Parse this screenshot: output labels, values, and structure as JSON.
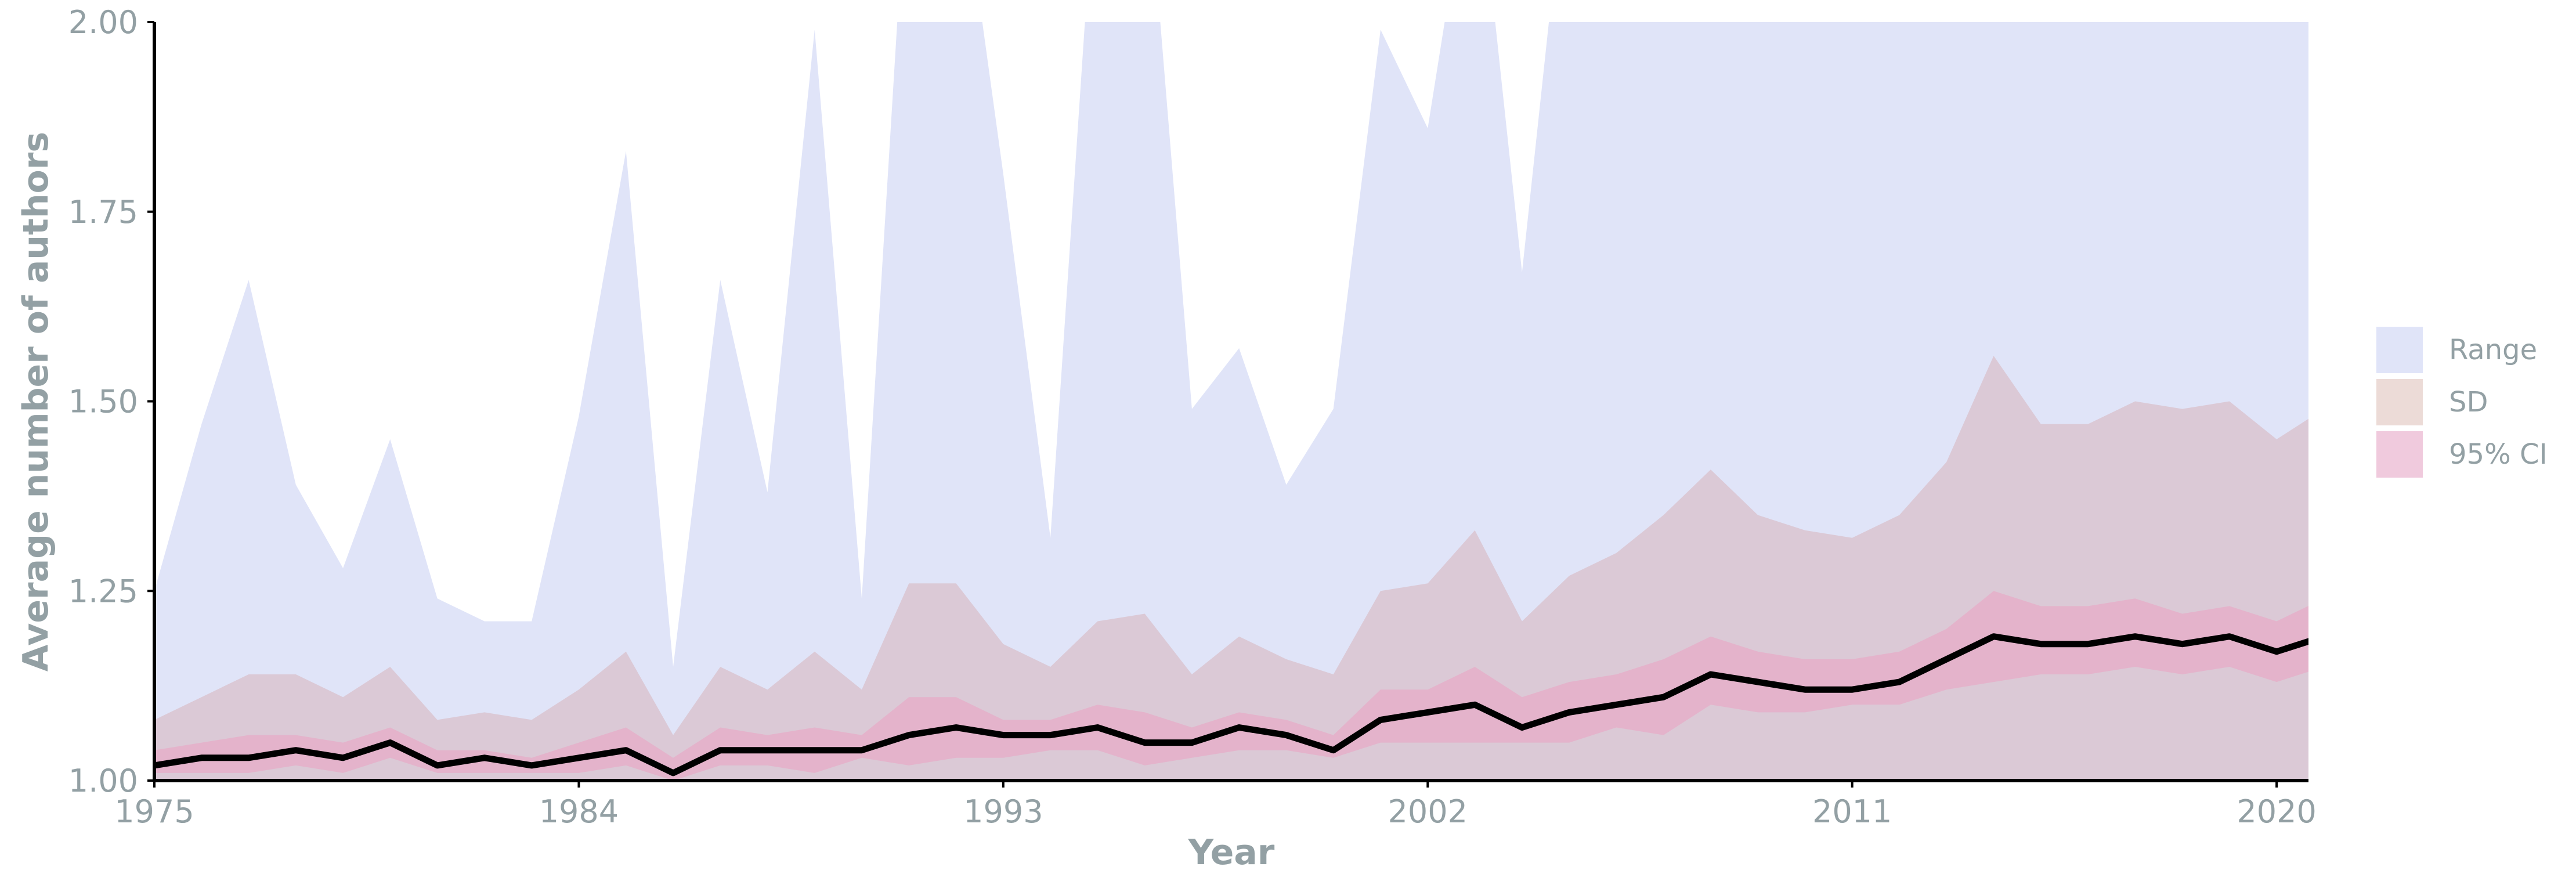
{
  "chart_data": {
    "type": "area",
    "xlabel": "Year",
    "ylabel": "Average number of authors",
    "xlim": [
      1975,
      2021
    ],
    "ylim": [
      1.0,
      2.0
    ],
    "x_ticks": [
      1975,
      1984,
      1993,
      2002,
      2011,
      2020
    ],
    "y_ticks": [
      1.0,
      1.25,
      1.5,
      1.75,
      2.0
    ],
    "y_tick_labels": [
      "1.00",
      "1.25",
      "1.50",
      "1.75",
      "2.00"
    ],
    "grid": false,
    "legend_position": "right",
    "x": [
      1975,
      1976,
      1977,
      1978,
      1979,
      1980,
      1981,
      1982,
      1983,
      1984,
      1985,
      1986,
      1987,
      1988,
      1989,
      1990,
      1991,
      1992,
      1993,
      1994,
      1995,
      1996,
      1997,
      1998,
      1999,
      2000,
      2001,
      2002,
      2003,
      2004,
      2005,
      2006,
      2007,
      2008,
      2009,
      2010,
      2011,
      2012,
      2013,
      2014,
      2015,
      2016,
      2017,
      2018,
      2019,
      2020,
      2021
    ],
    "series": [
      {
        "name": "Range",
        "kind": "band",
        "color": "#e0e4f8",
        "lower": [
          1.0,
          1.0,
          1.0,
          1.0,
          1.0,
          1.0,
          1.0,
          1.0,
          1.0,
          1.0,
          1.0,
          1.0,
          1.0,
          1.0,
          1.0,
          1.0,
          1.0,
          1.0,
          1.0,
          1.0,
          1.0,
          1.0,
          1.0,
          1.0,
          1.0,
          1.0,
          1.0,
          1.0,
          1.0,
          1.0,
          1.0,
          1.0,
          1.0,
          1.0,
          1.0,
          1.0,
          1.0,
          1.0,
          1.0,
          1.0,
          1.0,
          1.0,
          1.0,
          1.0,
          1.0,
          1.0,
          1.0
        ],
        "upper": [
          1.25,
          1.47,
          1.66,
          1.39,
          1.28,
          1.45,
          1.24,
          1.21,
          1.21,
          1.48,
          1.83,
          1.15,
          1.66,
          1.38,
          1.99,
          1.24,
          2.25,
          2.25,
          1.8,
          1.32,
          2.25,
          2.25,
          1.49,
          1.57,
          1.39,
          1.49,
          1.99,
          1.86,
          2.25,
          1.67,
          2.25,
          2.25,
          2.25,
          2.25,
          2.25,
          2.25,
          2.25,
          2.25,
          2.25,
          2.25,
          2.25,
          2.25,
          2.25,
          2.25,
          2.25,
          2.25,
          2.25
        ]
      },
      {
        "name": "SD",
        "kind": "band",
        "color": "#dbc9d6",
        "lower": [
          1.0,
          1.0,
          1.0,
          1.0,
          1.0,
          1.0,
          1.0,
          1.0,
          1.0,
          1.0,
          1.0,
          1.0,
          1.0,
          1.0,
          1.0,
          1.0,
          1.0,
          1.0,
          1.0,
          1.0,
          1.0,
          1.0,
          1.0,
          1.0,
          1.0,
          1.0,
          1.0,
          1.0,
          1.0,
          1.0,
          1.0,
          1.0,
          1.0,
          1.0,
          1.0,
          1.0,
          1.0,
          1.0,
          1.0,
          1.0,
          1.0,
          1.0,
          1.0,
          1.0,
          1.0,
          1.0,
          1.0
        ],
        "upper": [
          1.08,
          1.11,
          1.14,
          1.14,
          1.11,
          1.15,
          1.08,
          1.09,
          1.08,
          1.12,
          1.17,
          1.06,
          1.15,
          1.12,
          1.17,
          1.12,
          1.26,
          1.26,
          1.18,
          1.15,
          1.21,
          1.22,
          1.14,
          1.19,
          1.16,
          1.14,
          1.25,
          1.26,
          1.33,
          1.21,
          1.27,
          1.3,
          1.35,
          1.41,
          1.35,
          1.33,
          1.32,
          1.35,
          1.42,
          1.56,
          1.47,
          1.47,
          1.5,
          1.49,
          1.5,
          1.45,
          1.49
        ]
      },
      {
        "name": "95% CI",
        "kind": "band",
        "color": "#e4b3cb",
        "lower": [
          1.01,
          1.01,
          1.01,
          1.02,
          1.01,
          1.03,
          1.01,
          1.01,
          1.01,
          1.01,
          1.02,
          1.0,
          1.02,
          1.02,
          1.01,
          1.03,
          1.02,
          1.03,
          1.03,
          1.04,
          1.04,
          1.02,
          1.03,
          1.04,
          1.04,
          1.03,
          1.05,
          1.05,
          1.05,
          1.05,
          1.05,
          1.07,
          1.06,
          1.1,
          1.09,
          1.09,
          1.1,
          1.1,
          1.12,
          1.13,
          1.14,
          1.14,
          1.15,
          1.14,
          1.15,
          1.13,
          1.15
        ],
        "upper": [
          1.04,
          1.05,
          1.06,
          1.06,
          1.05,
          1.07,
          1.04,
          1.04,
          1.03,
          1.05,
          1.07,
          1.03,
          1.07,
          1.06,
          1.07,
          1.06,
          1.11,
          1.11,
          1.08,
          1.08,
          1.1,
          1.09,
          1.07,
          1.09,
          1.08,
          1.06,
          1.12,
          1.12,
          1.15,
          1.11,
          1.13,
          1.14,
          1.16,
          1.19,
          1.17,
          1.16,
          1.16,
          1.17,
          1.2,
          1.25,
          1.23,
          1.23,
          1.24,
          1.22,
          1.23,
          1.21,
          1.24
        ]
      },
      {
        "name": "Mean",
        "kind": "line",
        "color": "#000000",
        "values": [
          1.02,
          1.03,
          1.03,
          1.04,
          1.03,
          1.05,
          1.02,
          1.03,
          1.02,
          1.03,
          1.04,
          1.01,
          1.04,
          1.04,
          1.04,
          1.04,
          1.06,
          1.07,
          1.06,
          1.06,
          1.07,
          1.05,
          1.05,
          1.07,
          1.06,
          1.04,
          1.08,
          1.09,
          1.1,
          1.07,
          1.09,
          1.1,
          1.11,
          1.14,
          1.13,
          1.12,
          1.12,
          1.13,
          1.16,
          1.19,
          1.18,
          1.18,
          1.19,
          1.18,
          1.19,
          1.17,
          1.19
        ]
      }
    ],
    "legend": [
      {
        "label": "Range",
        "color": "#e0e4f8"
      },
      {
        "label": "SD",
        "color": "#ecdbd7"
      },
      {
        "label": "95% CI",
        "color": "#f0cadd"
      }
    ]
  }
}
